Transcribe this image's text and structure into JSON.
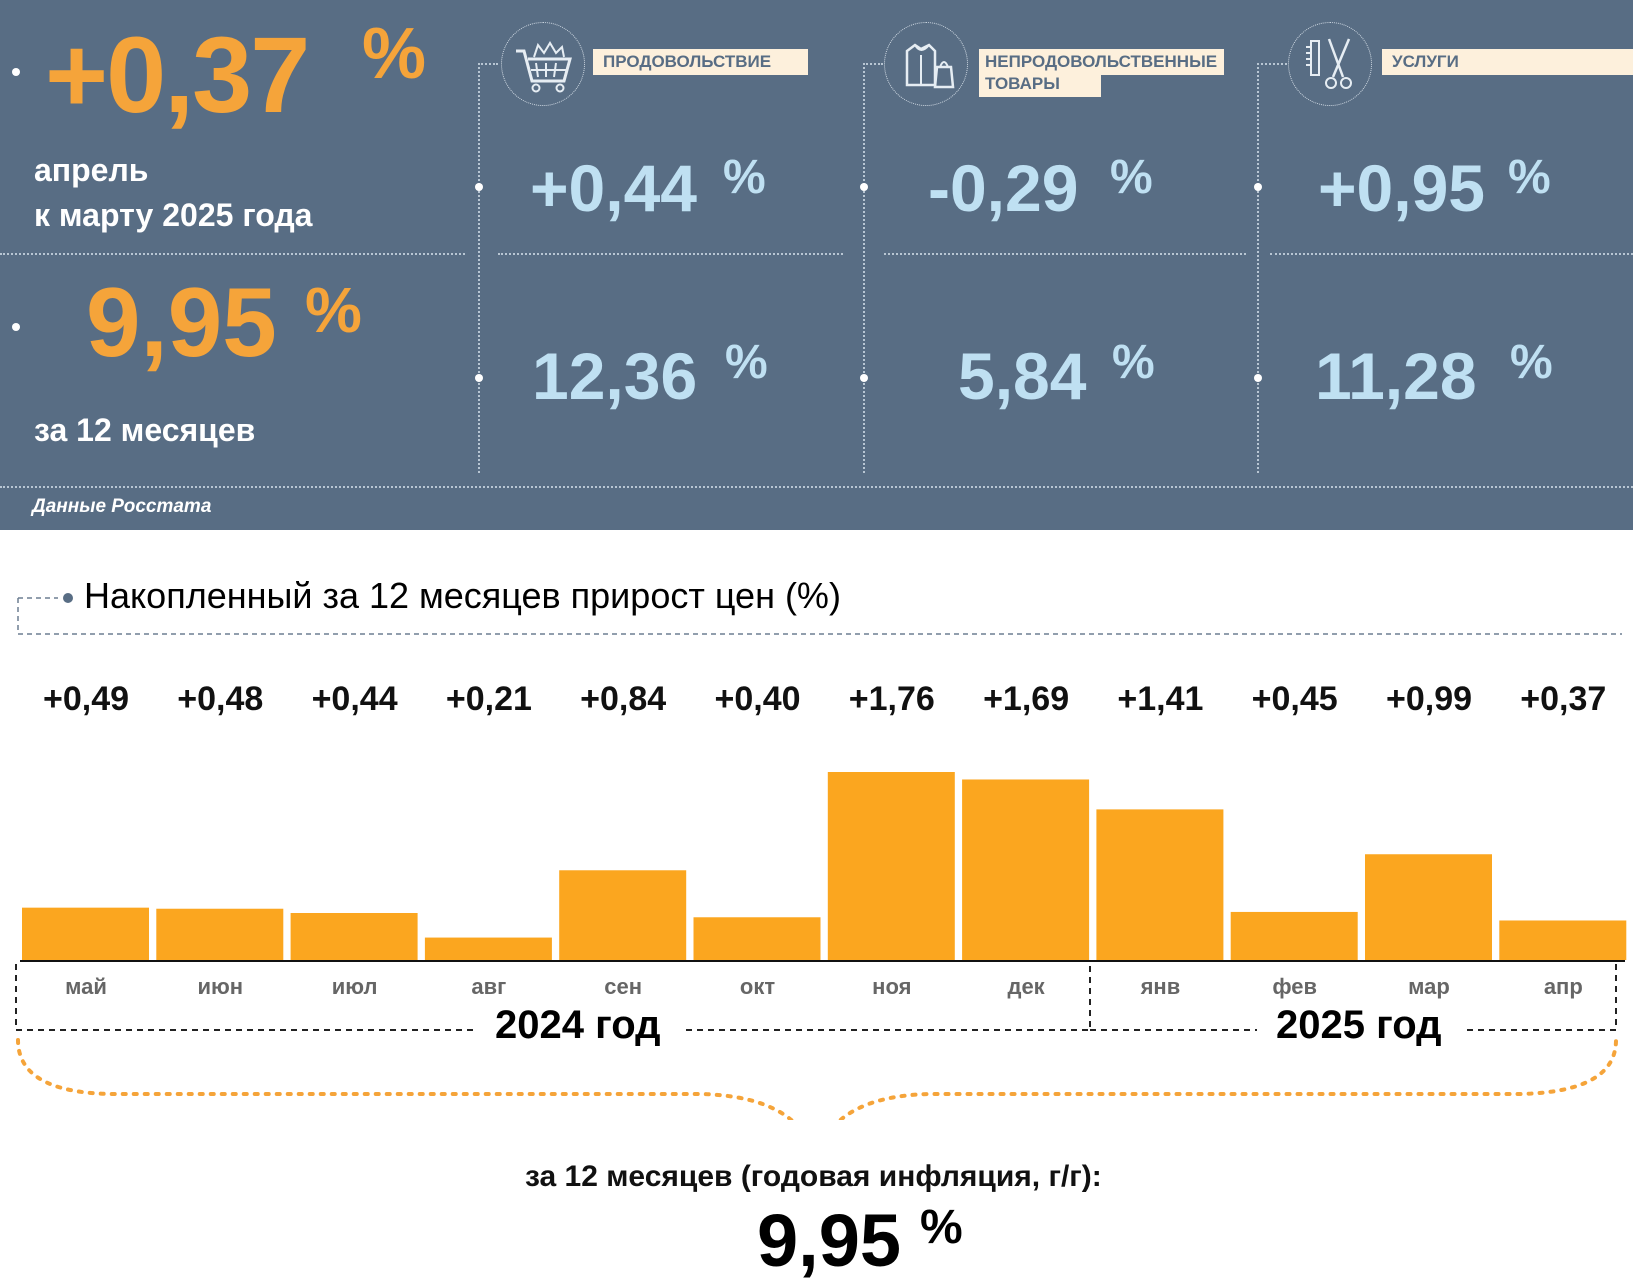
{
  "colors": {
    "top_bg": "#586d84",
    "accent_orange": "#f5a43a",
    "value_blue": "#bfe0f2",
    "bar": "#fba61f",
    "label_bg": "#fdf0dc"
  },
  "summary": {
    "monthly_value": "+0,37",
    "monthly_pct": "%",
    "monthly_caption_line1": "апрель",
    "monthly_caption_line2": "к марту 2025 года",
    "annual_value": "9,95",
    "annual_pct": "%",
    "annual_caption": "за 12 месяцев",
    "source": "Данные Росстата"
  },
  "categories": [
    {
      "label_line1": "ПРОДОВОЛЬСТВИЕ",
      "label_line2": "",
      "icon": "shopping-cart-icon",
      "monthly": "+0,44",
      "annual": "12,36",
      "pct": "%"
    },
    {
      "label_line1": "НЕПРОДОВОЛЬСТВЕННЫЕ",
      "label_line2": "ТОВАРЫ",
      "icon": "clothes-bag-icon",
      "monthly": "-0,29",
      "annual": "5,84",
      "pct": "%"
    },
    {
      "label_line1": "УСЛУГИ",
      "label_line2": "",
      "icon": "scissors-comb-icon",
      "monthly": "+0,95",
      "annual": "11,28",
      "pct": "%"
    }
  ],
  "chart_title": "Накопленный за 12 месяцев прирост цен (%)",
  "chart_data": {
    "type": "bar",
    "categories": [
      "май",
      "июн",
      "июл",
      "авг",
      "сен",
      "окт",
      "ноя",
      "дек",
      "янв",
      "фев",
      "мар",
      "апр"
    ],
    "values": [
      0.49,
      0.48,
      0.44,
      0.21,
      0.84,
      0.4,
      1.76,
      1.69,
      1.41,
      0.45,
      0.99,
      0.37
    ],
    "value_labels": [
      "+0,49",
      "+0,48",
      "+0,44",
      "+0,21",
      "+0,84",
      "+0,40",
      "+1,76",
      "+1,69",
      "+1,41",
      "+0,45",
      "+0,99",
      "+0,37"
    ],
    "year_groups": [
      {
        "label": "2024 год",
        "months": 8
      },
      {
        "label": "2025 год",
        "months": 4
      }
    ],
    "ylim": [
      0,
      1.76
    ]
  },
  "footer": {
    "caption": "за 12 месяцев (годовая инфляция, г/г):",
    "value": "9,95",
    "pct": "%"
  }
}
